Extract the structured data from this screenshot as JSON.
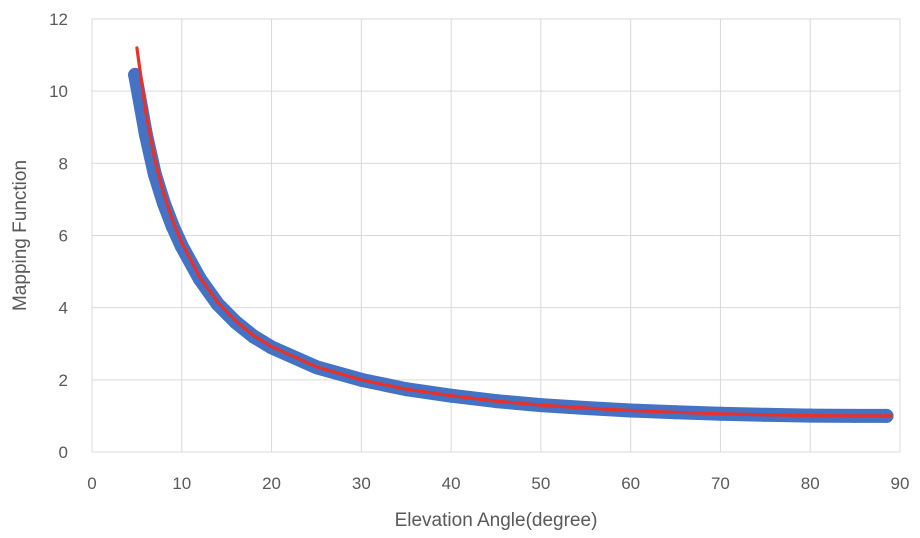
{
  "chart_data": {
    "type": "scatter",
    "title": "",
    "xlabel": "Elevation Angle(degree)",
    "ylabel": "Mapping Function",
    "xlim": [
      0,
      90
    ],
    "ylim": [
      0,
      12
    ],
    "xticks": [
      0,
      10,
      20,
      30,
      40,
      50,
      60,
      70,
      80,
      90
    ],
    "yticks": [
      0,
      2,
      4,
      6,
      8,
      10,
      12
    ],
    "grid": true,
    "legend": "none",
    "series": [
      {
        "style": "markers",
        "color": "#4472c4",
        "x": [
          4.8,
          5.5,
          6,
          7,
          8,
          9,
          10,
          12,
          14,
          16,
          18,
          20,
          25,
          30,
          35,
          40,
          45,
          50,
          55,
          60,
          65,
          70,
          75,
          80,
          85,
          88.5
        ],
        "y": [
          10.45,
          9.5,
          8.8,
          7.7,
          6.9,
          6.25,
          5.7,
          4.8,
          4.1,
          3.6,
          3.2,
          2.9,
          2.35,
          2.0,
          1.74,
          1.56,
          1.41,
          1.3,
          1.22,
          1.15,
          1.1,
          1.06,
          1.03,
          1.01,
          1.0,
          1.0
        ]
      },
      {
        "style": "line",
        "color": "#e8312a",
        "x": [
          5,
          5.5,
          6,
          7,
          8,
          9,
          10,
          12,
          14,
          16,
          18,
          20,
          25,
          30,
          35,
          40,
          45,
          50,
          55,
          60,
          65,
          70,
          75,
          80,
          85,
          89
        ],
        "y": [
          11.2,
          10.3,
          9.4,
          8.1,
          7.15,
          6.4,
          5.8,
          4.85,
          4.15,
          3.63,
          3.23,
          2.92,
          2.36,
          2.0,
          1.74,
          1.56,
          1.41,
          1.3,
          1.22,
          1.15,
          1.1,
          1.06,
          1.03,
          1.01,
          1.0,
          1.0
        ]
      }
    ]
  }
}
